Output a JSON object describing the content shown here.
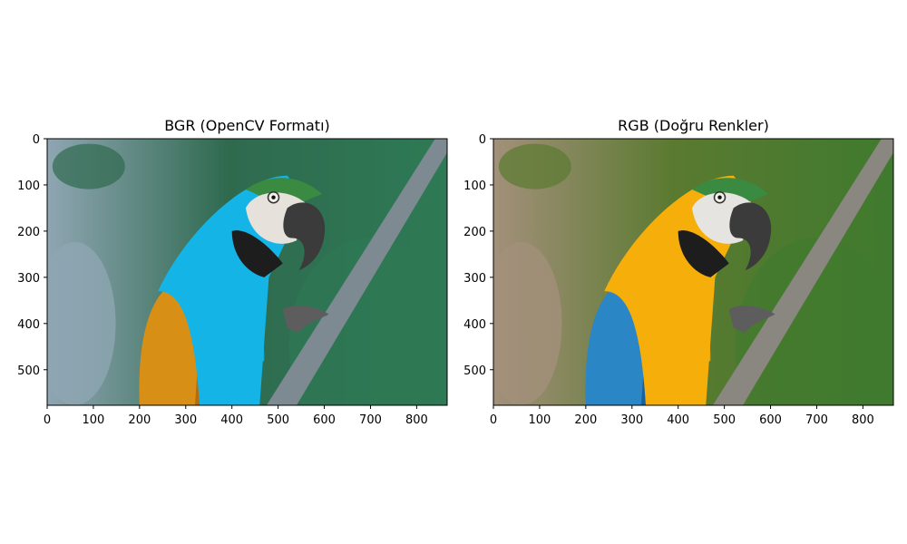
{
  "chart_data": [
    {
      "type": "image",
      "title": "BGR (OpenCV Formatı)",
      "xlim": [
        0,
        866
      ],
      "ylim": [
        577,
        0
      ],
      "x_ticks": [
        0,
        100,
        200,
        300,
        400,
        500,
        600,
        700,
        800
      ],
      "y_ticks": [
        0,
        100,
        200,
        300,
        400,
        500
      ],
      "palette": {
        "bg_top": "#2f6a4f",
        "bg_left": "#8fa6b3",
        "bg_right": "#2e7a55",
        "body": "#15b4e6",
        "wing": "#d79015",
        "wing_dark": "#b86a0c",
        "face": "#e6e1da",
        "crown": "#3a8a42",
        "beak": "#3b3b3b",
        "branch": "#7d8a91"
      }
    },
    {
      "type": "image",
      "title": "RGB (Doğru Renkler)",
      "xlim": [
        0,
        866
      ],
      "ylim": [
        577,
        0
      ],
      "x_ticks": [
        0,
        100,
        200,
        300,
        400,
        500,
        600,
        700,
        800
      ],
      "y_ticks": [
        0,
        100,
        200,
        300,
        400,
        500
      ],
      "palette": {
        "bg_top": "#5a7a30",
        "bg_left": "#a3907a",
        "bg_right": "#3f7a2e",
        "body": "#f5ae0a",
        "wing": "#2a86c4",
        "wing_dark": "#1a5fa0",
        "face": "#e6e4e0",
        "crown": "#3a8a42",
        "beak": "#3b3b3b",
        "branch": "#8a8680"
      }
    }
  ]
}
